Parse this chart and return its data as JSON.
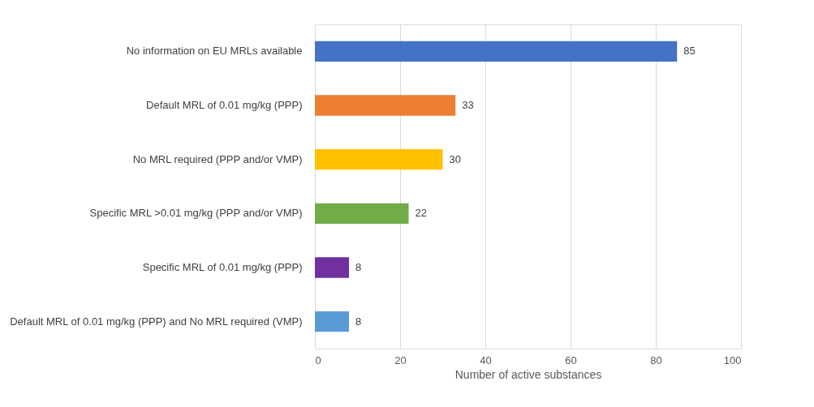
{
  "chart_data": {
    "type": "bar",
    "orientation": "horizontal",
    "xlabel": "Number of active substances",
    "categories": [
      "No information on EU MRLs available",
      "Default MRL of 0.01 mg/kg (PPP)",
      "No MRL required (PPP and/or VMP)",
      "Specific MRL >0.01 mg/kg (PPP and/or VMP)",
      "Specific MRL of  0.01 mg/kg (PPP)",
      "Default MRL of 0.01 mg/kg (PPP) and No MRL required (VMP)"
    ],
    "values": [
      85,
      33,
      30,
      22,
      8,
      8
    ],
    "colors": [
      "#4472c4",
      "#ed7d31",
      "#ffc000",
      "#70ad47",
      "#7030a0",
      "#5b9bd5"
    ],
    "xlim": [
      0,
      100
    ],
    "xticks": [
      0,
      20,
      40,
      60,
      80,
      100
    ],
    "grid": "x",
    "data_labels": true,
    "legend": false
  }
}
